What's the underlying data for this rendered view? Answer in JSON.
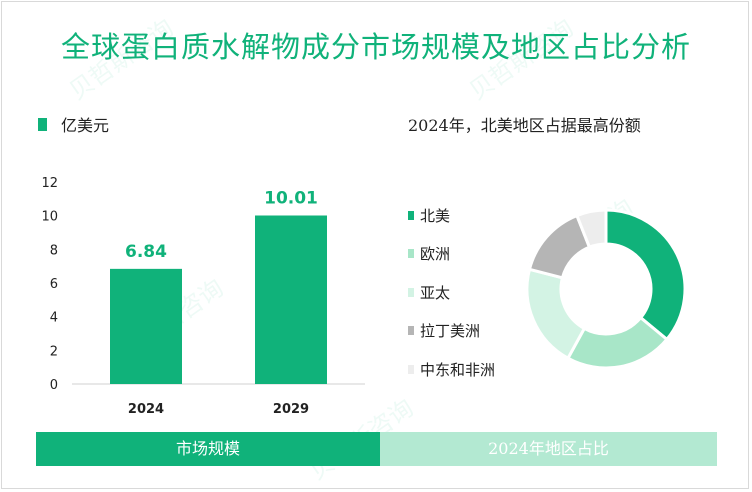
{
  "title": "全球蛋白质水解物成分市场规模及地区占比分析",
  "unit_label": "亿美元",
  "donut_title": "2024年，北美地区占据最高份额",
  "tabs": {
    "left": "市场规模",
    "right": "2024年地区占比"
  },
  "colors": {
    "accent": "#10b27a",
    "tab_right": "#b3e9d2",
    "bar": "#10b27a",
    "north_america": "#10b27a",
    "europe": "#a8e6c8",
    "asia_pacific": "#d3f3e4",
    "latin_america": "#b5b5b5",
    "mea": "#ededed"
  },
  "chart_data": [
    {
      "type": "bar",
      "categories": [
        "2024",
        "2029"
      ],
      "values": [
        6.84,
        10.01
      ],
      "data_labels": [
        "6.84",
        "10.01"
      ],
      "ylim": [
        0,
        12
      ],
      "yticks": [
        0,
        2,
        4,
        6,
        8,
        10,
        12
      ],
      "ylabel": "亿美元",
      "xlabel": "",
      "grid": false
    },
    {
      "type": "pie",
      "title": "2024年，北美地区占据最高份额",
      "donut": true,
      "labels": [
        "北美",
        "欧洲",
        "亚太",
        "拉丁美洲",
        "中东和非洲"
      ],
      "values": [
        36,
        22,
        21,
        15,
        6
      ],
      "colors": [
        "#10b27a",
        "#a8e6c8",
        "#d3f3e4",
        "#b5b5b5",
        "#ededed"
      ],
      "legend": "left"
    }
  ]
}
